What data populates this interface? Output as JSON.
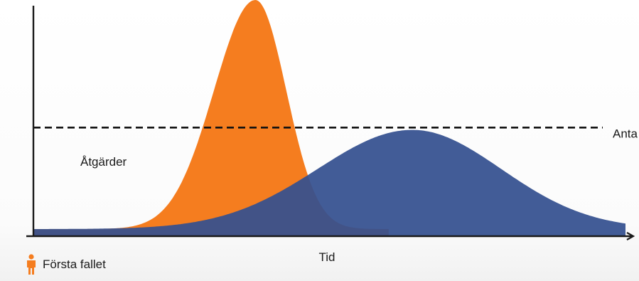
{
  "chart_data": {
    "type": "area",
    "title": "",
    "xlabel": "Tid",
    "ylabel": "",
    "xlim": [
      0,
      100
    ],
    "ylim": [
      0,
      100
    ],
    "series": [
      {
        "color": "#f57d1f",
        "peak_x": 37.5,
        "peak_y": 100,
        "base": 3
      },
      {
        "color": "#34508f",
        "peak_x": 64,
        "peak_y": 45,
        "base": 3
      }
    ],
    "threshold": {
      "y": 46,
      "label": "Anta",
      "style": "dashed"
    },
    "annotations": [
      {
        "text": "Åtgärder"
      }
    ],
    "legend": {
      "label": "Första fallet",
      "icon": "person-icon",
      "color": "#f57d1f",
      "placement": "bottom-left"
    }
  }
}
